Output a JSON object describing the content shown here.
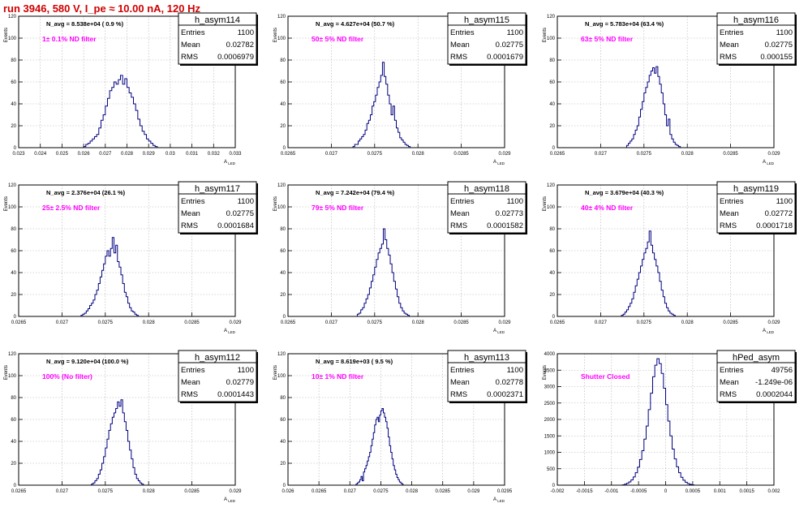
{
  "header": {
    "title": "run 3946,   580 V, I_pe ≈ 10.00 nA, 120 Hz"
  },
  "colors": {
    "title": "#d00000",
    "histogram": "#000080",
    "filter_label": "#ff00ff",
    "grid": "#b0b0b0"
  },
  "chart_data": [
    {
      "type": "histogram",
      "name": "h_asym114",
      "navg": "N_avg = 8.538e+04 ( 0.9 %)",
      "filter": "1± 0.1% ND filter",
      "stats": {
        "entries": "1100",
        "mean": "0.02782",
        "rms": "0.0006979"
      },
      "labels": {
        "entries": "Entries",
        "mean": "Mean",
        "rms": "RMS"
      },
      "xlabel": "A",
      "xlabel_sub": "LED",
      "ylabel": "Events",
      "xlim": [
        0.023,
        0.033
      ],
      "ylim": [
        0,
        120
      ],
      "xticks": [
        "0.023",
        "0.024",
        "0.025",
        "0.026",
        "0.027",
        "0.028",
        "0.029",
        "0.03",
        "0.031",
        "0.032",
        "0.033"
      ],
      "yticks": [
        "0",
        "20",
        "40",
        "60",
        "80",
        "100",
        "120"
      ],
      "bins": {
        "start": 0.026,
        "width": 0.0001,
        "values": [
          1,
          3,
          4,
          6,
          8,
          10,
          12,
          18,
          25,
          30,
          38,
          45,
          52,
          55,
          60,
          58,
          62,
          66,
          58,
          63,
          55,
          50,
          46,
          40,
          34,
          26,
          20,
          15,
          12,
          8,
          6,
          4,
          2,
          1
        ]
      }
    },
    {
      "type": "histogram",
      "name": "h_asym115",
      "navg": "N_avg = 4.627e+04 (50.7 %)",
      "filter": "50± 5% ND filter",
      "stats": {
        "entries": "1100",
        "mean": "0.02775",
        "rms": "0.0001679"
      },
      "labels": {
        "entries": "Entries",
        "mean": "Mean",
        "rms": "RMS"
      },
      "xlabel": "A",
      "xlabel_sub": "LED",
      "ylabel": "Events",
      "xlim": [
        0.0265,
        0.029
      ],
      "ylim": [
        0,
        120
      ],
      "xticks": [
        "0.0265",
        "0.027",
        "0.0275",
        "0.028",
        "0.0285",
        "0.029"
      ],
      "yticks": [
        "0",
        "20",
        "40",
        "60",
        "80",
        "100",
        "120"
      ],
      "bins": {
        "start": 0.02725,
        "width": 2e-05,
        "values": [
          1,
          3,
          3,
          6,
          8,
          10,
          12,
          16,
          22,
          25,
          30,
          38,
          42,
          48,
          55,
          60,
          66,
          78,
          65,
          58,
          48,
          40,
          30,
          38,
          25,
          18,
          14,
          9,
          7,
          5,
          3,
          2,
          1
        ]
      }
    },
    {
      "type": "histogram",
      "name": "h_asym116",
      "navg": "N_avg = 5.783e+04 (63.4 %)",
      "filter": "63± 5% ND filter",
      "stats": {
        "entries": "1100",
        "mean": "0.02775",
        "rms": "0.000155"
      },
      "labels": {
        "entries": "Entries",
        "mean": "Mean",
        "rms": "RMS"
      },
      "xlabel": "A",
      "xlabel_sub": "LED",
      "ylabel": "Events",
      "xlim": [
        0.0265,
        0.029
      ],
      "ylim": [
        0,
        120
      ],
      "xticks": [
        "0.0265",
        "0.027",
        "0.0275",
        "0.028",
        "0.0285",
        "0.029"
      ],
      "yticks": [
        "0",
        "20",
        "40",
        "60",
        "80",
        "100",
        "120"
      ],
      "bins": {
        "start": 0.0273,
        "width": 2e-05,
        "values": [
          2,
          4,
          6,
          8,
          12,
          16,
          20,
          28,
          35,
          42,
          50,
          55,
          60,
          66,
          70,
          73,
          68,
          74,
          65,
          58,
          50,
          40,
          30,
          20,
          26,
          12,
          8,
          5,
          3,
          2,
          1
        ]
      }
    },
    {
      "type": "histogram",
      "name": "h_asym117",
      "navg": "N_avg = 2.376e+04 (26.1 %)",
      "filter": "25± 2.5% ND filter",
      "stats": {
        "entries": "1100",
        "mean": "0.02775",
        "rms": "0.0001684"
      },
      "labels": {
        "entries": "Entries",
        "mean": "Mean",
        "rms": "RMS"
      },
      "xlabel": "A",
      "xlabel_sub": "LED",
      "ylabel": "Events",
      "xlim": [
        0.0265,
        0.029
      ],
      "ylim": [
        0,
        120
      ],
      "xticks": [
        "0.0265",
        "0.027",
        "0.0275",
        "0.028",
        "0.0285",
        "0.029"
      ],
      "yticks": [
        "0",
        "20",
        "40",
        "60",
        "80",
        "100",
        "120"
      ],
      "bins": {
        "start": 0.02722,
        "width": 2e-05,
        "values": [
          1,
          2,
          3,
          5,
          7,
          10,
          12,
          15,
          20,
          24,
          30,
          36,
          42,
          48,
          55,
          60,
          55,
          62,
          72,
          58,
          65,
          50,
          45,
          38,
          30,
          22,
          18,
          12,
          8,
          5,
          4,
          2,
          1
        ]
      }
    },
    {
      "type": "histogram",
      "name": "h_asym118",
      "navg": "N_avg = 7.242e+04 (79.4 %)",
      "filter": "79± 5% ND filter",
      "stats": {
        "entries": "1100",
        "mean": "0.02773",
        "rms": "0.0001582"
      },
      "labels": {
        "entries": "Entries",
        "mean": "Mean",
        "rms": "RMS"
      },
      "xlabel": "A",
      "xlabel_sub": "LED",
      "ylabel": "Events",
      "xlim": [
        0.0265,
        0.029
      ],
      "ylim": [
        0,
        120
      ],
      "xticks": [
        "0.0265",
        "0.027",
        "0.0275",
        "0.028",
        "0.0285",
        "0.029"
      ],
      "yticks": [
        "0",
        "20",
        "40",
        "60",
        "80",
        "100",
        "120"
      ],
      "bins": {
        "start": 0.0273,
        "width": 2e-05,
        "values": [
          2,
          3,
          6,
          8,
          12,
          16,
          20,
          26,
          32,
          38,
          45,
          52,
          58,
          62,
          66,
          80,
          70,
          62,
          56,
          48,
          40,
          32,
          25,
          18,
          12,
          8,
          5,
          3,
          2,
          1
        ]
      }
    },
    {
      "type": "histogram",
      "name": "h_asym119",
      "navg": "N_avg = 3.679e+04 (40.3 %)",
      "filter": "40± 4% ND filter",
      "stats": {
        "entries": "1100",
        "mean": "0.02772",
        "rms": "0.0001718"
      },
      "labels": {
        "entries": "Entries",
        "mean": "Mean",
        "rms": "RMS"
      },
      "xlabel": "A",
      "xlabel_sub": "LED",
      "ylabel": "Events",
      "xlim": [
        0.0265,
        0.029
      ],
      "ylim": [
        0,
        120
      ],
      "xticks": [
        "0.0265",
        "0.027",
        "0.0275",
        "0.028",
        "0.0285",
        "0.029"
      ],
      "yticks": [
        "0",
        "20",
        "40",
        "60",
        "80",
        "100",
        "120"
      ],
      "bins": {
        "start": 0.02724,
        "width": 2e-05,
        "values": [
          1,
          2,
          4,
          6,
          9,
          12,
          16,
          22,
          28,
          34,
          40,
          46,
          52,
          58,
          62,
          68,
          78,
          65,
          58,
          52,
          46,
          40,
          32,
          24,
          18,
          12,
          8,
          5,
          3,
          2,
          1
        ]
      }
    },
    {
      "type": "histogram",
      "name": "h_asym112",
      "navg": "N_avg = 9.120e+04 (100.0 %)",
      "filter": "100% (No filter)",
      "stats": {
        "entries": "1100",
        "mean": "0.02779",
        "rms": "0.0001443"
      },
      "labels": {
        "entries": "Entries",
        "mean": "Mean",
        "rms": "RMS"
      },
      "xlabel": "A",
      "xlabel_sub": "LED",
      "ylabel": "Events",
      "xlim": [
        0.0265,
        0.029
      ],
      "ylim": [
        0,
        120
      ],
      "xticks": [
        "0.0265",
        "0.027",
        "0.0275",
        "0.028",
        "0.0285",
        "0.029"
      ],
      "yticks": [
        "0",
        "20",
        "40",
        "60",
        "80",
        "100",
        "120"
      ],
      "bins": {
        "start": 0.02734,
        "width": 2e-05,
        "values": [
          1,
          2,
          4,
          6,
          10,
          14,
          20,
          26,
          34,
          42,
          50,
          56,
          62,
          66,
          70,
          76,
          72,
          78,
          66,
          58,
          50,
          40,
          32,
          24,
          16,
          10,
          6,
          4,
          2,
          1
        ]
      }
    },
    {
      "type": "histogram",
      "name": "h_asym113",
      "navg": "N_avg = 8.619e+03 ( 9.5 %)",
      "filter": "10± 1% ND filter",
      "stats": {
        "entries": "1100",
        "mean": "0.02778",
        "rms": "0.0002371"
      },
      "labels": {
        "entries": "Entries",
        "mean": "Mean",
        "rms": "RMS"
      },
      "xlabel": "A",
      "xlabel_sub": "LED",
      "ylabel": "Events",
      "xlim": [
        0.026,
        0.0295
      ],
      "ylim": [
        0,
        120
      ],
      "xticks": [
        "0.026",
        "0.0265",
        "0.027",
        "0.0275",
        "0.028",
        "0.0285",
        "0.029",
        "0.0295"
      ],
      "yticks": [
        "0",
        "20",
        "40",
        "60",
        "80",
        "100",
        "120"
      ],
      "bins": {
        "start": 0.0271,
        "width": 2e-05,
        "values": [
          1,
          2,
          3,
          5,
          8,
          4,
          12,
          15,
          18,
          22,
          26,
          30,
          36,
          42,
          48,
          55,
          60,
          62,
          58,
          64,
          68,
          70,
          66,
          62,
          58,
          52,
          44,
          36,
          30,
          24,
          18,
          14,
          10,
          7,
          5,
          3,
          2,
          1
        ]
      }
    },
    {
      "type": "histogram",
      "name": "hPed_asym",
      "navg": "",
      "filter": "Shutter Closed",
      "stats": {
        "entries": "49756",
        "mean": "-1.249e-06",
        "rms": "0.0002044"
      },
      "labels": {
        "entries": "Entries",
        "mean": "Mean",
        "rms": "RMS"
      },
      "xlabel": "",
      "xlabel_sub": "",
      "ylabel": "Events",
      "xlim": [
        -0.002,
        0.002
      ],
      "ylim": [
        0,
        4000
      ],
      "xticks": [
        "-0.002",
        "-0.0015",
        "-0.001",
        "-0.0005",
        "0",
        "0.0005",
        "0.001",
        "0.0015",
        "0.002"
      ],
      "yticks": [
        "0",
        "500",
        "1000",
        "1500",
        "2000",
        "2500",
        "3000",
        "3500",
        "4000"
      ],
      "bins": {
        "start": -0.0008,
        "width": 4e-05,
        "values": [
          10,
          30,
          60,
          100,
          160,
          250,
          380,
          550,
          780,
          1050,
          1400,
          1800,
          2300,
          2800,
          3300,
          3650,
          3850,
          3700,
          3400,
          2950,
          2450,
          1950,
          1500,
          1100,
          800,
          560,
          380,
          240,
          150,
          90,
          50,
          25,
          12
        ]
      }
    }
  ]
}
